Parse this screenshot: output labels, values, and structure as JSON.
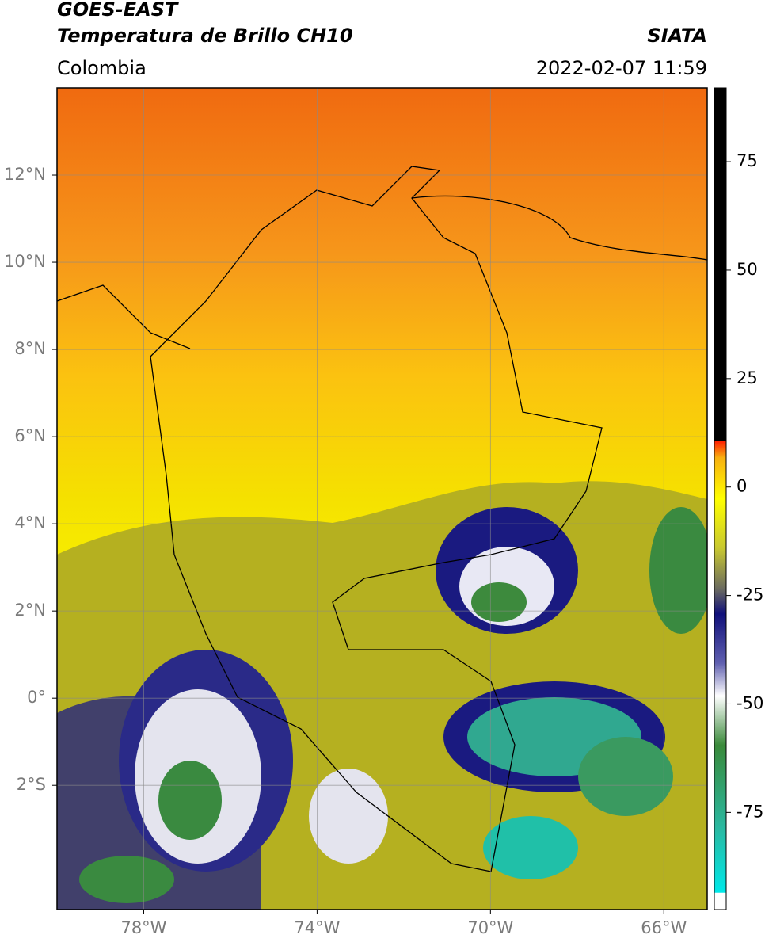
{
  "header": {
    "title": "GOES-EAST",
    "subtitle": "Temperatura de Brillo CH10",
    "source": "SIATA",
    "region": "Colombia",
    "datetime": "2022-02-07 11:59"
  },
  "map": {
    "lonlim": [
      -80,
      -65
    ],
    "latlim": [
      -4.85,
      14
    ],
    "lat_ticks": [
      {
        "value": 12,
        "label": "12°N"
      },
      {
        "value": 10,
        "label": "10°N"
      },
      {
        "value": 8,
        "label": "8°N"
      },
      {
        "value": 6,
        "label": "6°N"
      },
      {
        "value": 4,
        "label": "4°N"
      },
      {
        "value": 2,
        "label": "2°N"
      },
      {
        "value": 0,
        "label": "0°"
      },
      {
        "value": -2,
        "label": "2°S"
      }
    ],
    "lon_ticks": [
      {
        "value": -78,
        "label": "78°W"
      },
      {
        "value": -74,
        "label": "74°W"
      },
      {
        "value": -70,
        "label": "70°W"
      },
      {
        "value": -66,
        "label": "66°W"
      }
    ]
  },
  "colorbar": {
    "lim": [
      -97.4,
      92
    ],
    "ticks": [
      75,
      50,
      25,
      0,
      -25,
      -50,
      -75
    ]
  }
}
